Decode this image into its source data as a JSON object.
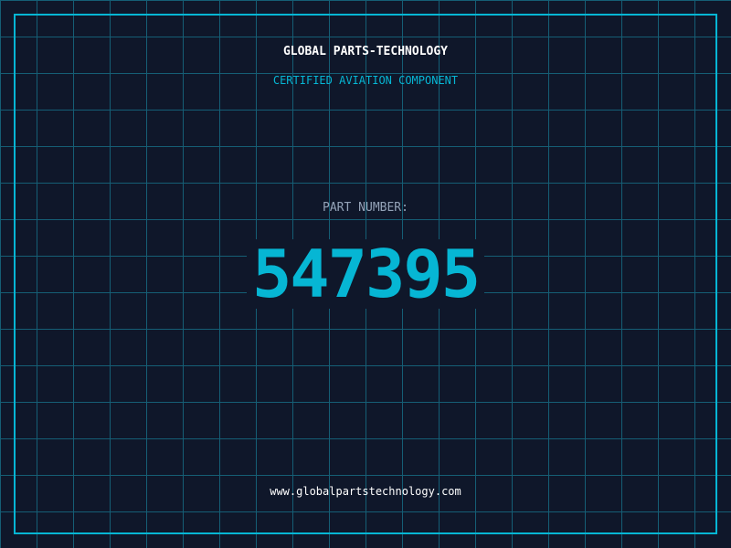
{
  "header": {
    "title": "GLOBAL PARTS-TECHNOLOGY",
    "subtitle": "CERTIFIED AVIATION COMPONENT"
  },
  "part": {
    "label": "PART NUMBER:",
    "number": "547395"
  },
  "footer": {
    "url": "www.globalpartstechnology.com"
  },
  "colors": {
    "background": "#0f172a",
    "accent": "#06b6d4",
    "grid": "#155e75",
    "label": "#94a3b8"
  }
}
